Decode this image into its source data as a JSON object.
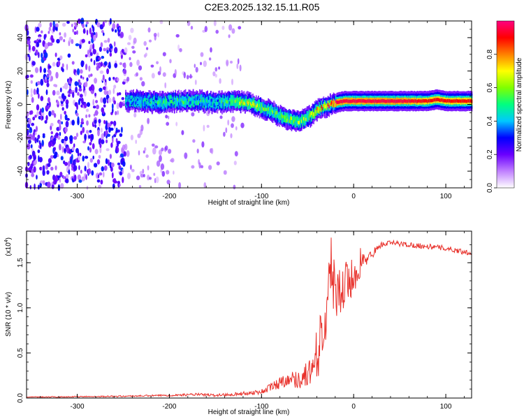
{
  "title": "C2E3.2025.132.15.11.R05",
  "chart_data": [
    {
      "type": "heatmap",
      "name": "spectrogram",
      "xlabel": "Height of straight line (km)",
      "ylabel": "Frequency (Hz)",
      "xlim": [
        -355,
        128
      ],
      "ylim": [
        -50,
        50
      ],
      "xticks": [
        -300,
        -200,
        -100,
        0,
        100
      ],
      "yticks": [
        -40,
        -20,
        0,
        20,
        40
      ],
      "grid": false,
      "colorbar": {
        "label": "Normalized spectral amplitude",
        "range": [
          0,
          1
        ],
        "ticks": [
          "0.0",
          "0.2",
          "0.4",
          "0.6",
          "0.8"
        ],
        "colors": [
          "#ffffff",
          "#c080ff",
          "#6a00ff",
          "#0000ff",
          "#00c8ff",
          "#00ff80",
          "#80ff00",
          "#ffff00",
          "#ff8000",
          "#ff0000",
          "#ff0080"
        ]
      },
      "signal_ridge": {
        "height_km": [
          -248,
          -230,
          -210,
          -190,
          -170,
          -150,
          -130,
          -115,
          -100,
          -90,
          -80,
          -70,
          -60,
          -50,
          -45,
          -40,
          -35,
          -30,
          -25,
          -20,
          -10,
          0,
          20,
          50,
          80,
          90,
          100,
          128
        ],
        "frequency_hz": [
          2,
          2,
          1,
          2,
          2,
          1,
          2,
          1,
          -2,
          -4,
          -7,
          -9,
          -10,
          -8,
          -6,
          -3,
          -2,
          -1,
          0,
          1,
          2,
          2,
          2,
          2,
          2,
          3,
          2,
          2
        ],
        "peak_amplitude": [
          0.4,
          0.45,
          0.5,
          0.5,
          0.5,
          0.45,
          0.6,
          0.7,
          0.6,
          0.55,
          0.6,
          0.65,
          0.6,
          0.65,
          0.7,
          0.75,
          0.8,
          0.85,
          0.9,
          0.95,
          0.95,
          0.95,
          0.95,
          0.95,
          0.9,
          0.9,
          0.9,
          0.9
        ]
      },
      "noise_floor_region_km": [
        -355,
        -248
      ]
    },
    {
      "type": "line",
      "name": "snr",
      "xlabel": "Height of straight line (km)",
      "ylabel": "SNR (10 * v/v)",
      "y_multiplier_label": "(x10",
      "y_multiplier_exp": "4",
      "y_multiplier_close": ")",
      "xlim": [
        -355,
        128
      ],
      "ylim": [
        0,
        1.85
      ],
      "xticks": [
        -300,
        -200,
        -100,
        0,
        100
      ],
      "yticks": [
        "0.0",
        "0.5",
        "1.0",
        "1.5"
      ],
      "grid": false,
      "color": "#e8302a",
      "series": [
        {
          "x": [
            -355,
            -300,
            -250,
            -200,
            -170,
            -150,
            -120,
            -100,
            -90,
            -80,
            -70,
            -60,
            -50,
            -45,
            -40,
            -35,
            -30,
            -27,
            -24,
            -20,
            -15,
            -10,
            -5,
            0,
            5,
            10,
            15,
            20,
            25,
            30,
            40,
            50,
            60,
            70,
            80,
            90,
            100,
            110,
            120,
            128
          ],
          "y": [
            0.01,
            0.015,
            0.02,
            0.03,
            0.04,
            0.03,
            0.05,
            0.07,
            0.12,
            0.17,
            0.22,
            0.2,
            0.27,
            0.32,
            0.42,
            0.6,
            0.9,
            1.3,
            1.55,
            1.1,
            1.15,
            1.25,
            1.3,
            1.32,
            1.45,
            1.5,
            1.55,
            1.6,
            1.65,
            1.7,
            1.72,
            1.71,
            1.7,
            1.69,
            1.68,
            1.67,
            1.66,
            1.64,
            1.62,
            1.61
          ],
          "noise_amplitude": [
            0.005,
            0.006,
            0.008,
            0.01,
            0.015,
            0.015,
            0.02,
            0.03,
            0.05,
            0.07,
            0.08,
            0.1,
            0.15,
            0.2,
            0.25,
            0.3,
            0.35,
            0.4,
            0.45,
            0.35,
            0.3,
            0.3,
            0.25,
            0.2,
            0.15,
            0.12,
            0.06,
            0.05,
            0.04,
            0.03,
            0.03,
            0.03,
            0.03,
            0.03,
            0.03,
            0.03,
            0.03,
            0.03,
            0.03,
            0.03
          ]
        }
      ]
    }
  ]
}
